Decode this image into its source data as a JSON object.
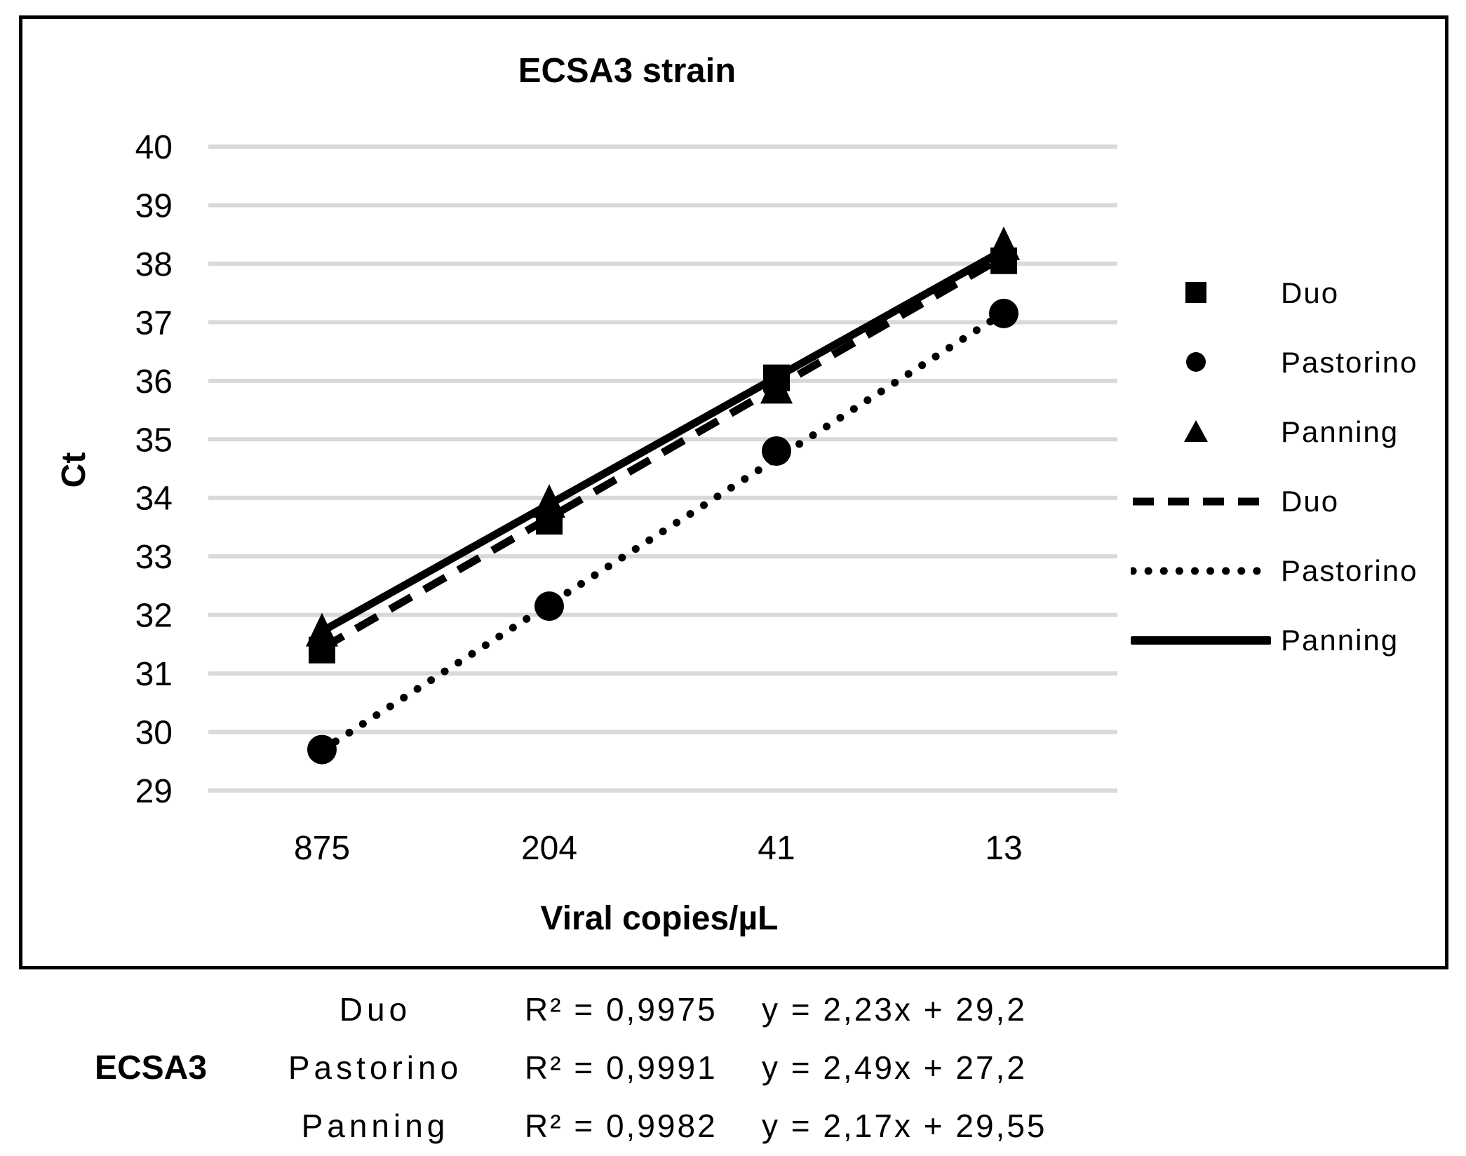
{
  "figure": {
    "title": "ECSA3 strain",
    "x_axis_title": "Viral copies/µL",
    "y_axis_title": "Ct"
  },
  "chart_data": {
    "type": "scatter",
    "title": "ECSA3 strain",
    "xlabel": "Viral copies/µL",
    "ylabel": "Ct",
    "categories": [
      "875",
      "204",
      "41",
      "13"
    ],
    "ylim": [
      29,
      40
    ],
    "ytick_step": 1,
    "grid": true,
    "legend_position": "right",
    "series": [
      {
        "name": "Duo",
        "marker": "square",
        "line_style": "dashed",
        "values": [
          31.4,
          33.6,
          36.05,
          38.05
        ],
        "trendline": {
          "slope": 2.23,
          "intercept": 29.2,
          "r2": 0.9975
        }
      },
      {
        "name": "Pastorino",
        "marker": "circle",
        "line_style": "dotted",
        "values": [
          29.7,
          32.15,
          34.8,
          37.15
        ],
        "trendline": {
          "slope": 2.49,
          "intercept": 27.2,
          "r2": 0.9991
        }
      },
      {
        "name": "Panning",
        "marker": "triangle",
        "line_style": "solid",
        "values": [
          31.7,
          33.9,
          35.85,
          38.3
        ],
        "trendline": {
          "slope": 2.17,
          "intercept": 29.55,
          "r2": 0.9982
        }
      }
    ],
    "legend": [
      {
        "label": "Duo",
        "symbol": "square"
      },
      {
        "label": "Pastorino",
        "symbol": "circle"
      },
      {
        "label": "Panning",
        "symbol": "triangle"
      },
      {
        "label": "Duo",
        "symbol": "dashed-line"
      },
      {
        "label": "Pastorino",
        "symbol": "dotted-line"
      },
      {
        "label": "Panning",
        "symbol": "solid-line"
      }
    ]
  },
  "stats_table": {
    "strain": "ECSA3",
    "rows": [
      {
        "method": "Duo",
        "r_squared": "R² = 0,9975",
        "equation": "y = 2,23x + 29,2"
      },
      {
        "method": "Pastorino",
        "r_squared": "R² = 0,9991",
        "equation": "y = 2,49x + 27,2"
      },
      {
        "method": "Panning",
        "r_squared": "R² = 0,9982",
        "equation": "y = 2,17x + 29,55"
      }
    ]
  },
  "colors": {
    "foreground": "#000000",
    "gridline": "#d9d9d9",
    "background": "#ffffff"
  }
}
